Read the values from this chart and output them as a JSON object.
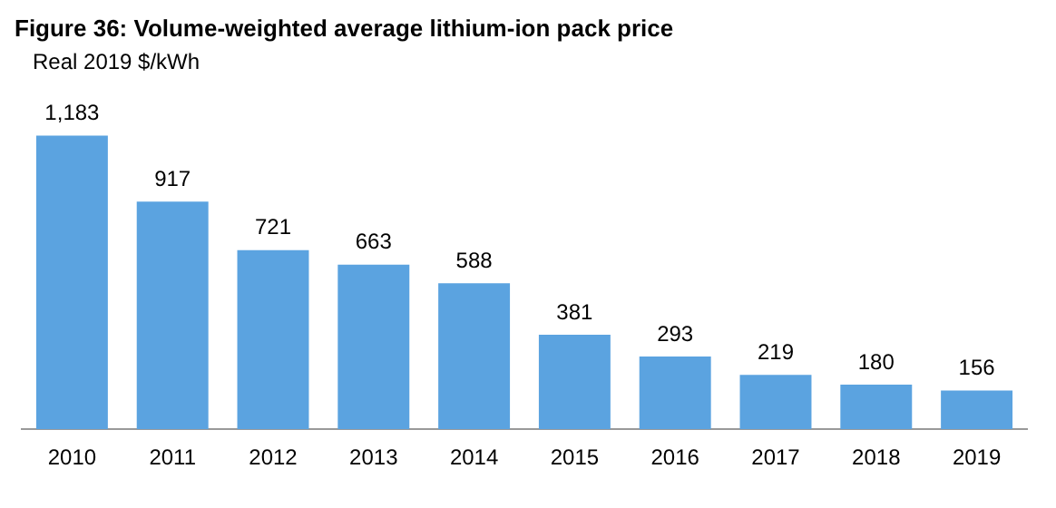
{
  "chart_data": {
    "type": "bar",
    "title": "Figure 36: Volume-weighted average lithium-ion pack price",
    "subtitle": "Real 2019 $/kWh",
    "categories": [
      "2010",
      "2011",
      "2012",
      "2013",
      "2014",
      "2015",
      "2016",
      "2017",
      "2018",
      "2019"
    ],
    "values": [
      1183,
      917,
      721,
      663,
      588,
      381,
      293,
      219,
      180,
      156
    ],
    "value_labels": [
      "1,183",
      "917",
      "721",
      "663",
      "588",
      "381",
      "293",
      "219",
      "180",
      "156"
    ],
    "color": "#5ba3e0",
    "grid": false,
    "legend": false
  }
}
